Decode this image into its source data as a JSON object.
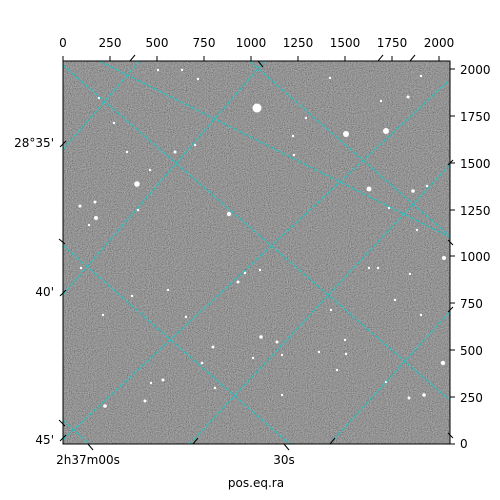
{
  "image_panel": {
    "x_pixel_ticks": [
      "0",
      "250",
      "500",
      "750",
      "1000",
      "1250",
      "1500",
      "1750",
      "2000"
    ],
    "y_pixel_ticks": [
      "0",
      "250",
      "500",
      "750",
      "1000",
      "1250",
      "1500",
      "1750",
      "2000"
    ],
    "dec_ticks": [
      "28°35'",
      "40'",
      "45'"
    ],
    "ra_tick_main": "2h37m00s",
    "ra_tick_secondary": "30s",
    "x_axis_label": "pos.eq.ra",
    "grid_color": "#00d2d2",
    "background_color": "#6e6e6e"
  }
}
